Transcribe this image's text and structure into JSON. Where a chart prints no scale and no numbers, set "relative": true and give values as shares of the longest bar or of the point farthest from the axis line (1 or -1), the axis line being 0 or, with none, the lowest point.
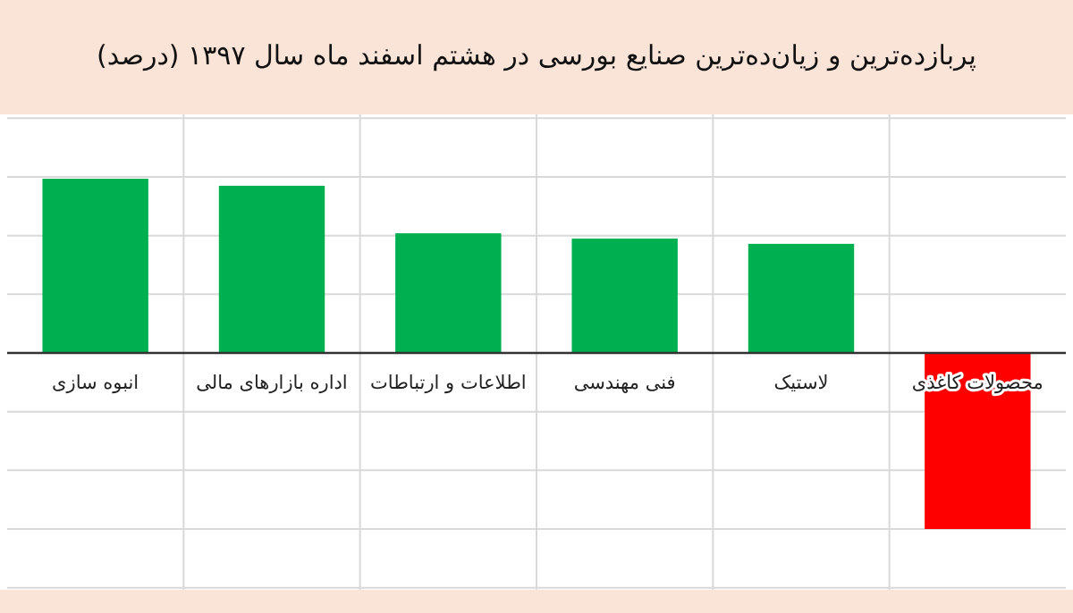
{
  "chart_data": {
    "type": "bar",
    "title": "پربازده‌ترین و زیان‌ده‌ترین صنایع بورسی در هشتم اسفند ماه سال ۱۳۹۷ (درصد)",
    "categories": [
      "انبوه سازی",
      "اداره بازارهای مالی",
      "اطلاعات و ارتباطات",
      "فنی مهندسی",
      "لاستیک",
      "محصولات کاغذی"
    ],
    "values": [
      0.99,
      0.95,
      0.68,
      0.65,
      0.62,
      -1
    ],
    "colors": [
      "#00b050",
      "#00b050",
      "#00b050",
      "#00b050",
      "#00b050",
      "#ff0000"
    ],
    "relative": true,
    "grid": true
  }
}
